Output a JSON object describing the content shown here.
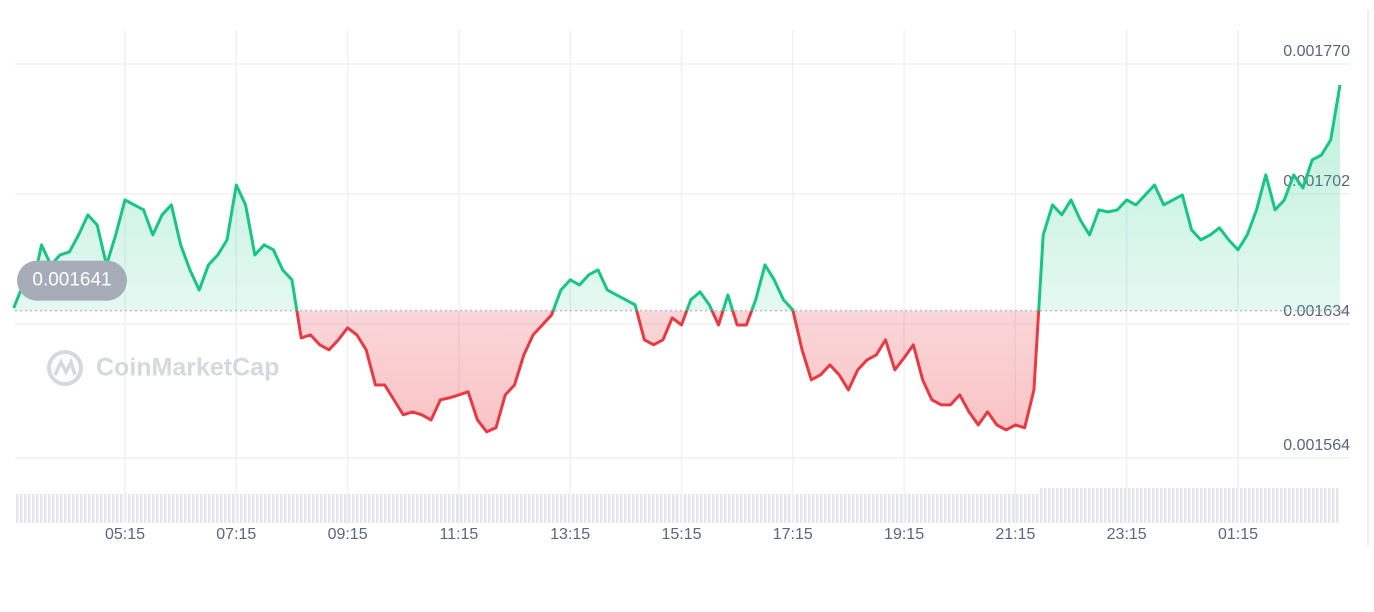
{
  "chart_data": {
    "type": "line",
    "watermark": "CoinMarketCap",
    "categories": [
      null,
      null,
      null,
      null,
      null,
      null,
      null,
      null,
      null,
      null,
      null,
      null,
      "05:15",
      null,
      null,
      null,
      null,
      null,
      null,
      null,
      null,
      null,
      null,
      null,
      "07:15",
      null,
      null,
      null,
      null,
      null,
      null,
      null,
      null,
      null,
      null,
      null,
      "09:15",
      null,
      null,
      null,
      null,
      null,
      null,
      null,
      null,
      null,
      null,
      null,
      "11:15",
      null,
      null,
      null,
      null,
      null,
      null,
      null,
      null,
      null,
      null,
      null,
      "13:15",
      null,
      null,
      null,
      null,
      null,
      null,
      null,
      null,
      null,
      null,
      null,
      "15:15",
      null,
      null,
      null,
      null,
      null,
      null,
      null,
      null,
      null,
      null,
      null,
      "17:15",
      null,
      null,
      null,
      null,
      null,
      null,
      null,
      null,
      null,
      null,
      null,
      "19:15",
      null,
      null,
      null,
      null,
      null,
      null,
      null,
      null,
      null,
      null,
      null,
      "21:15",
      null,
      null,
      null,
      null,
      null,
      null,
      null,
      null,
      null,
      null,
      null,
      "23:15",
      null,
      null,
      null,
      null,
      null,
      null,
      null,
      null,
      null,
      null,
      null,
      "01:15",
      null,
      null,
      null,
      null,
      null,
      null,
      null,
      null,
      null,
      null,
      null
    ],
    "values": [
      0.0016424,
      0.0016544,
      0.0016529,
      0.0016754,
      0.0016649,
      0.0016701,
      0.0016717,
      0.0016806,
      0.0016911,
      0.0016858,
      0.0016649,
      0.0016806,
      0.0016989,
      0.0016963,
      0.0016937,
      0.0016806,
      0.0016911,
      0.0016963,
      0.0016754,
      0.0016623,
      0.0016518,
      0.0016649,
      0.0016701,
      0.001678,
      0.0017067,
      0.0016963,
      0.0016701,
      0.0016754,
      0.0016728,
      0.0016623,
      0.0016571,
      0.0016267,
      0.0016283,
      0.0016231,
      0.0016205,
      0.0016257,
      0.001632,
      0.0016283,
      0.0016205,
      0.0016021,
      0.0016021,
      0.0015943,
      0.0015865,
      0.001588,
      0.0015865,
      0.0015838,
      0.0015943,
      0.0015954,
      0.0015969,
      0.0015985,
      0.0015838,
      0.0015776,
      0.0015797,
      0.0015969,
      0.0016021,
      0.0016178,
      0.0016283,
      0.0016335,
      0.0016388,
      0.0016518,
      0.0016571,
      0.0016544,
      0.0016597,
      0.0016623,
      0.0016518,
      0.0016492,
      0.0016466,
      0.001644,
      0.0016257,
      0.0016231,
      0.0016257,
      0.0016372,
      0.0016335,
      0.0016466,
      0.0016508,
      0.001644,
      0.0016335,
      0.0016492,
      0.0016335,
      0.0016335,
      0.0016466,
      0.0016649,
      0.0016571,
      0.0016466,
      0.0016414,
      0.0016205,
      0.0016048,
      0.0016074,
      0.0016126,
      0.0016074,
      0.0015995,
      0.00161,
      0.0016152,
      0.0016178,
      0.0016257,
      0.00161,
      0.0016163,
      0.0016231,
      0.0016048,
      0.0015943,
      0.0015917,
      0.0015917,
      0.0015969,
      0.001588,
      0.0015812,
      0.001588,
      0.0015812,
      0.0015786,
      0.0015812,
      0.0015797,
      0.0015995,
      0.0016806,
      0.0016963,
      0.0016911,
      0.0016989,
      0.0016884,
      0.0016806,
      0.0016937,
      0.0016926,
      0.0016937,
      0.0016989,
      0.0016963,
      0.0017015,
      0.0017067,
      0.0016963,
      0.0016989,
      0.0017015,
      0.0016832,
      0.001678,
      0.0016806,
      0.0016843,
      0.001678,
      0.0016728,
      0.0016806,
      0.0016937,
      0.001712,
      0.0016937,
      0.0016989,
      0.001712,
      0.0017052,
      0.0017198,
      0.0017224,
      0.0017303,
      0.001759
    ],
    "baseline": 0.001641,
    "up_color": "#16c784",
    "down_color": "#ea3943",
    "ylim": [
      0.001555,
      0.001788
    ],
    "yticks": [
      0.001564,
      0.001634,
      0.001702,
      {
        "value": 0.00177,
        "label": "0.001770"
      }
    ],
    "grid": true
  }
}
